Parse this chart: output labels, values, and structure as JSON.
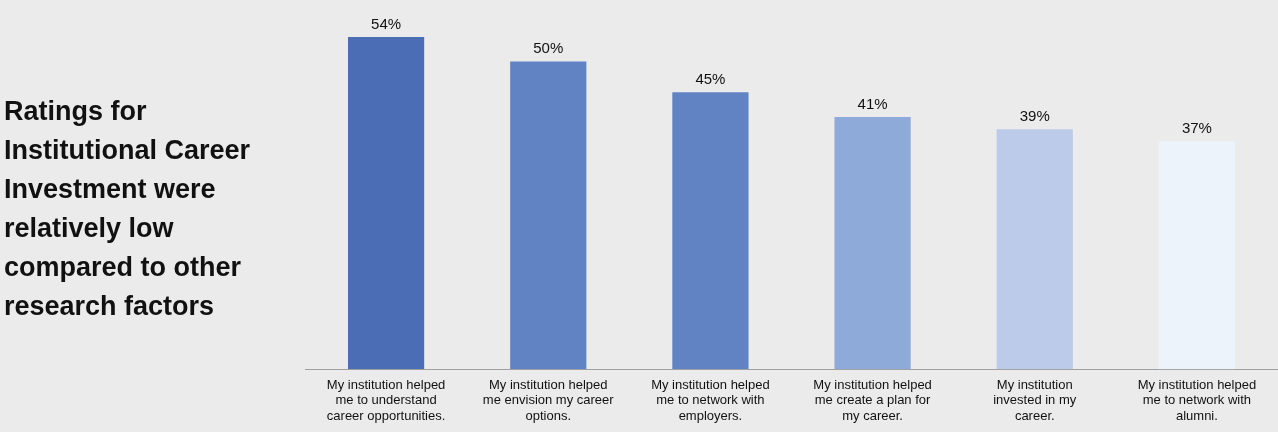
{
  "chart_data": {
    "type": "bar",
    "title": "Ratings for Institutional Career Investment were relatively low compared to other research factors",
    "categories": [
      "My institution helped me to understand career opportunities.",
      "My institution helped me envision my career options.",
      "My institution helped me to network with employers.",
      "My institution helped me create a plan for my career.",
      "My institution invested in my career.",
      "My institution helped me to network with alumni."
    ],
    "values": [
      54,
      50,
      45,
      41,
      39,
      37
    ],
    "colors": [
      "#4a6db5",
      "#6183c4",
      "#6183c4",
      "#8eaad9",
      "#bccbea",
      "#edf3fb"
    ],
    "value_labels": [
      "54%",
      "50%",
      "45%",
      "41%",
      "39%",
      "37%"
    ],
    "tick_labels": "x",
    "grid": false,
    "legend": false
  }
}
